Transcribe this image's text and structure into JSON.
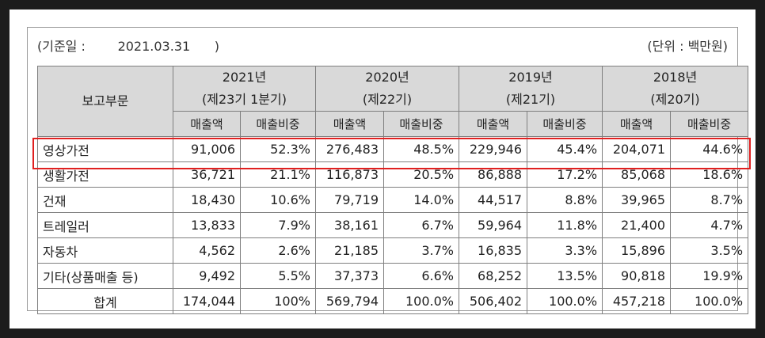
{
  "meta": {
    "date_label": "(기준일 :        2021.03.31      )",
    "unit_label": "(단위 : 백만원)"
  },
  "header": {
    "segment_label": "보고부문",
    "years": [
      {
        "year": "2021년",
        "period": "(제23기 1분기)"
      },
      {
        "year": "2020년",
        "period": "(제22기)"
      },
      {
        "year": "2019년",
        "period": "(제21기)"
      },
      {
        "year": "2018년",
        "period": "(제20기)"
      }
    ],
    "sales_label": "매출액",
    "ratio_label": "매출비중"
  },
  "rows": [
    {
      "label": "영상가전",
      "cells": [
        "91,006",
        "52.3%",
        "276,483",
        "48.5%",
        "229,946",
        "45.4%",
        "204,071",
        "44.6%"
      ]
    },
    {
      "label": "생활가전",
      "cells": [
        "36,721",
        "21.1%",
        "116,873",
        "20.5%",
        "86,888",
        "17.2%",
        "85,068",
        "18.6%"
      ]
    },
    {
      "label": "건재",
      "cells": [
        "18,430",
        "10.6%",
        "79,719",
        "14.0%",
        "44,517",
        "8.8%",
        "39,965",
        "8.7%"
      ]
    },
    {
      "label": "트레일러",
      "cells": [
        "13,833",
        "7.9%",
        "38,161",
        "6.7%",
        "59,964",
        "11.8%",
        "21,400",
        "4.7%"
      ]
    },
    {
      "label": "자동차",
      "cells": [
        "4,562",
        "2.6%",
        "21,185",
        "3.7%",
        "16,835",
        "3.3%",
        "15,896",
        "3.5%"
      ]
    },
    {
      "label": "기타(상품매출 등)",
      "cells": [
        "9,492",
        "5.5%",
        "37,373",
        "6.6%",
        "68,252",
        "13.5%",
        "90,818",
        "19.9%"
      ]
    },
    {
      "label": "합계",
      "cells": [
        "174,044",
        "100%",
        "569,794",
        "100.0%",
        "506,402",
        "100.0%",
        "457,218",
        "100.0%"
      ]
    }
  ],
  "colors": {
    "header_bg": "#d9d9d9",
    "highlight": "#e02020",
    "frame": "#1c1c1c"
  }
}
